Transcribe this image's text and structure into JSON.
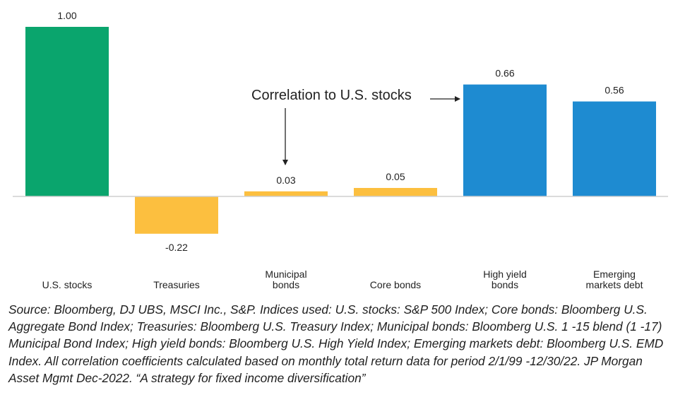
{
  "chart_data": {
    "type": "bar",
    "categories": [
      [
        "U.S. stocks"
      ],
      [
        "Treasuries"
      ],
      [
        "Municipal",
        "bonds"
      ],
      [
        "Core bonds"
      ],
      [
        "High yield",
        "bonds"
      ],
      [
        "Emerging",
        "markets debt"
      ]
    ],
    "values": [
      1.0,
      -0.22,
      0.03,
      0.05,
      0.66,
      0.56
    ],
    "value_labels": [
      "1.00",
      "-0.22",
      "0.03",
      "0.05",
      "0.66",
      "0.56"
    ],
    "colors": [
      "#0aa56d",
      "#fcbf3f",
      "#fcbf3f",
      "#fcbf3f",
      "#1e8bd1",
      "#1e8bd1"
    ],
    "annotation": "Correlation to U.S. stocks",
    "title": "",
    "xlabel": "",
    "ylabel": "",
    "ylim": [
      -0.22,
      1.0
    ],
    "grid": false,
    "legend": "none"
  },
  "source_note": "Source: Bloomberg, DJ UBS, MSCI Inc., S&P. Indices used: U.S. stocks: S&P 500 Index; Core bonds: Bloomberg U.S. Aggregate Bond Index; Treasuries: Bloomberg U.S. Treasury Index; Municipal bonds: Bloomberg U.S. 1 -15 blend (1 -17) Municipal Bond Index; High yield bonds: Bloomberg U.S. High Yield Index; Emerging markets debt: Bloomberg U.S. EMD Index. All correlation coefficients calculated based on monthly total return data for period 2/1/99 -12/30/22. JP Morgan Asset Mgmt Dec-2022. “A strategy for fixed income diversification”"
}
